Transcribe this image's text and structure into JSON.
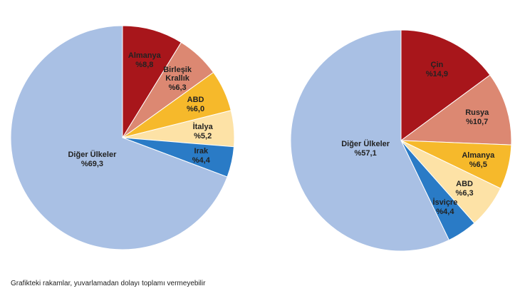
{
  "chart_data": [
    {
      "type": "pie",
      "categories": [
        "Almanya",
        "Birleşik Krallık",
        "ABD",
        "İtalya",
        "Irak",
        "Diğer Ülkeler"
      ],
      "values": [
        8.8,
        6.3,
        6.0,
        5.2,
        4.4,
        69.3
      ],
      "value_labels": [
        "%8,8",
        "%6,3",
        "%6,0",
        "%5,2",
        "%4,4",
        "%69,3"
      ],
      "colors": [
        "#a8161b",
        "#dc8872",
        "#f6b92b",
        "#fde2a6",
        "#2a7bc6",
        "#a9c0e4"
      ]
    },
    {
      "type": "pie",
      "categories": [
        "Çin",
        "Rusya",
        "Almanya",
        "ABD",
        "İsviçre",
        "Diğer Ülkeler"
      ],
      "values": [
        14.9,
        10.7,
        6.5,
        6.3,
        4.4,
        57.1
      ],
      "value_labels": [
        "%14,9",
        "%10,7",
        "%6,5",
        "%6,3",
        "%4,4",
        "%57,1"
      ],
      "colors": [
        "#a8161b",
        "#dc8872",
        "#f6b92b",
        "#fde2a6",
        "#2a7bc6",
        "#a9c0e4"
      ]
    }
  ],
  "note": "Grafikteki rakamlar, yuvarlamadan dolayı toplamı vermeyebilir"
}
